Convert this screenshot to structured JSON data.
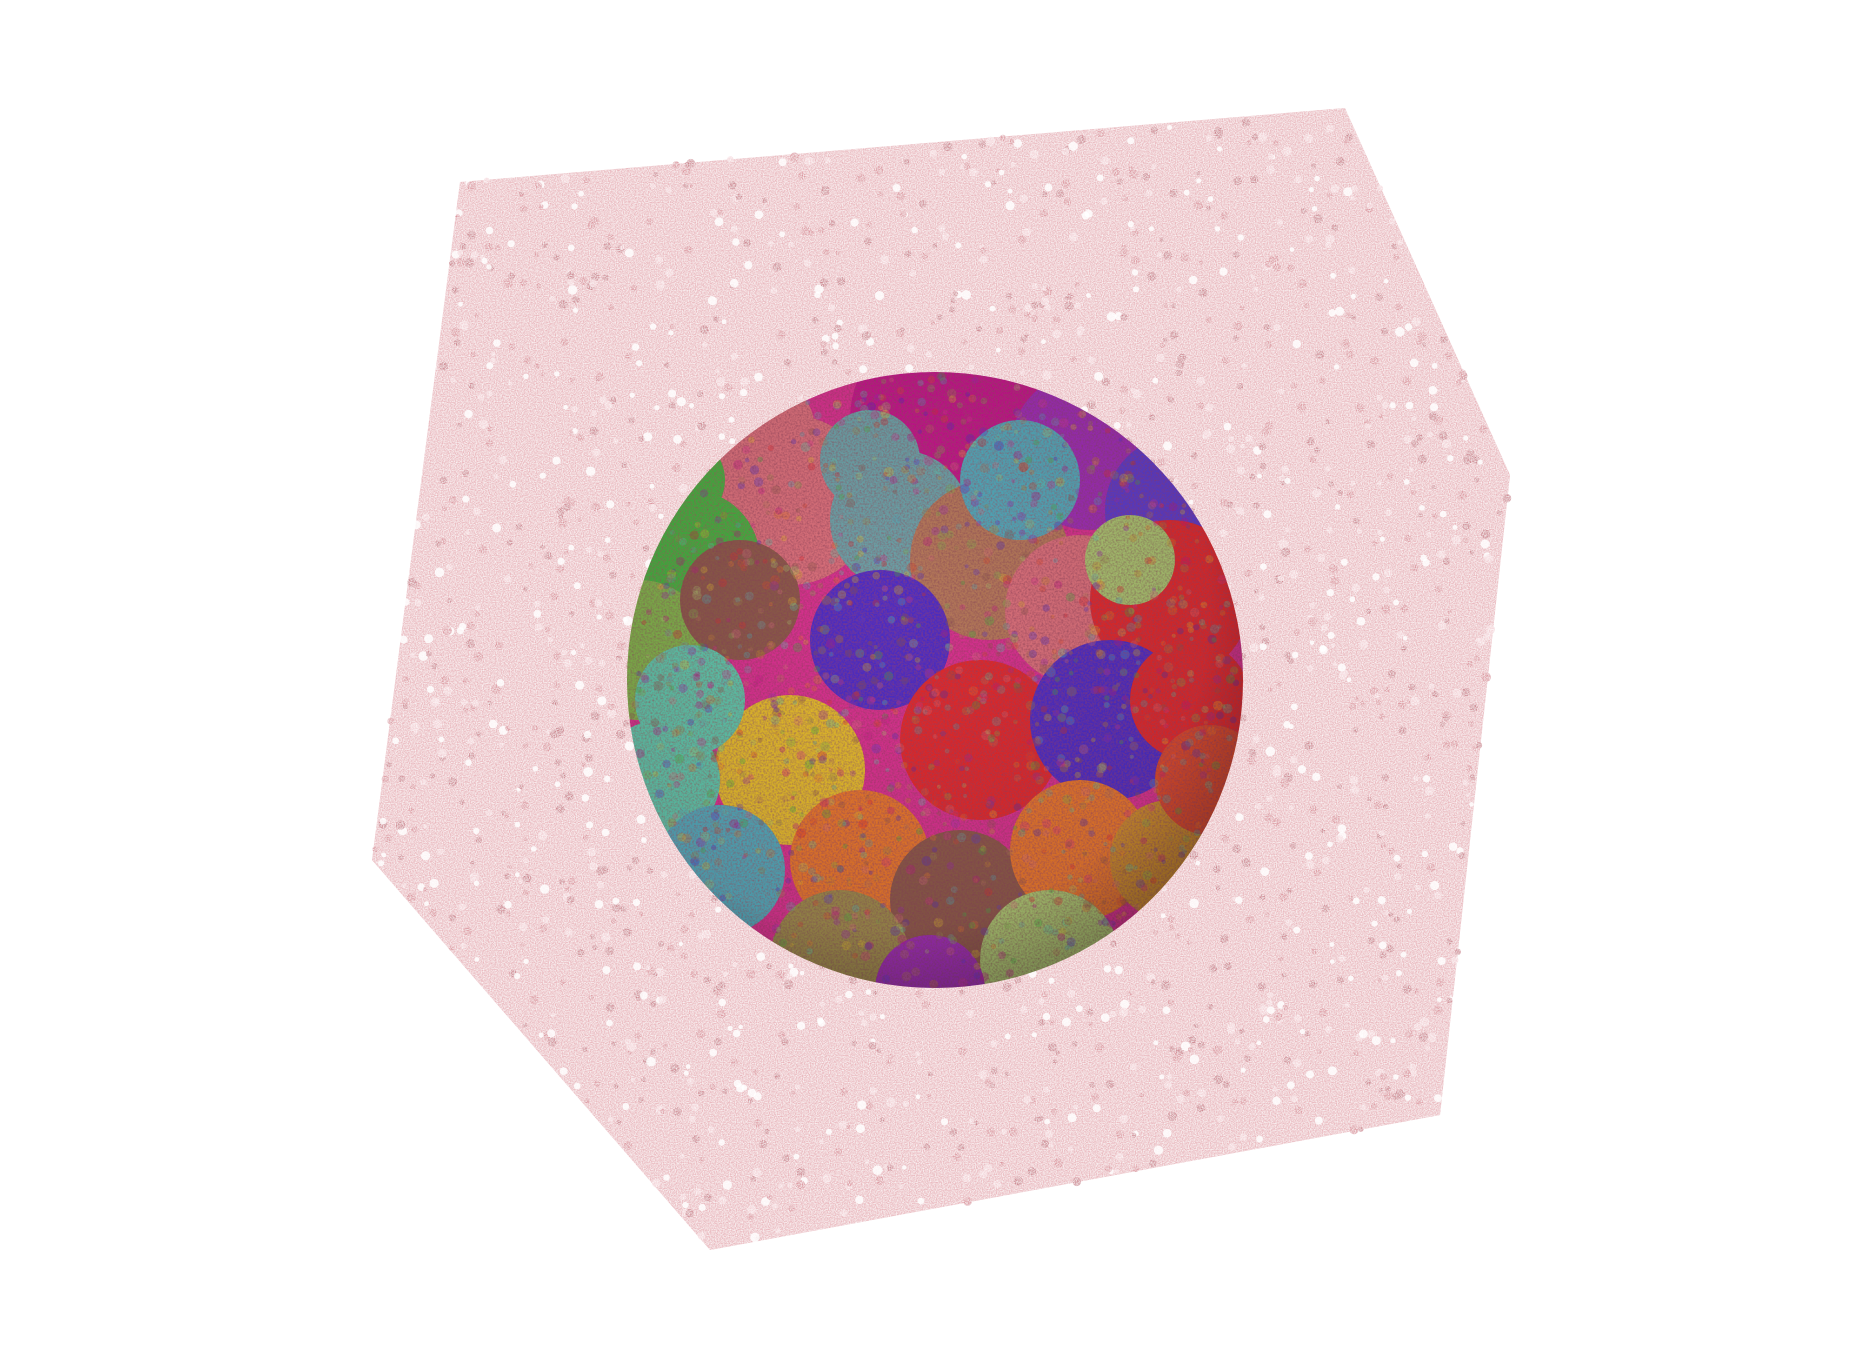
{
  "scene": {
    "background_color": "#ffffff",
    "solvent_box": {
      "fill_color": "#e9b7bd",
      "particle_colors": [
        "#f4d6da",
        "#d98f99",
        "#ffffff",
        "#c97b86"
      ]
    },
    "protein_complex": {
      "subunit_colors": [
        "#d7338f",
        "#c2178a",
        "#9c2fb3",
        "#5a3cc9",
        "#4b2fc2",
        "#e02a2a",
        "#d94b2b",
        "#e5772a",
        "#c98a2b",
        "#e1b82a",
        "#7fb04c",
        "#3fae3f",
        "#5cc2a8",
        "#4fa7b8",
        "#6aa0a6",
        "#b4785a",
        "#8b5a4a",
        "#9b8a4c",
        "#d86f7a",
        "#a8c070"
      ]
    }
  }
}
